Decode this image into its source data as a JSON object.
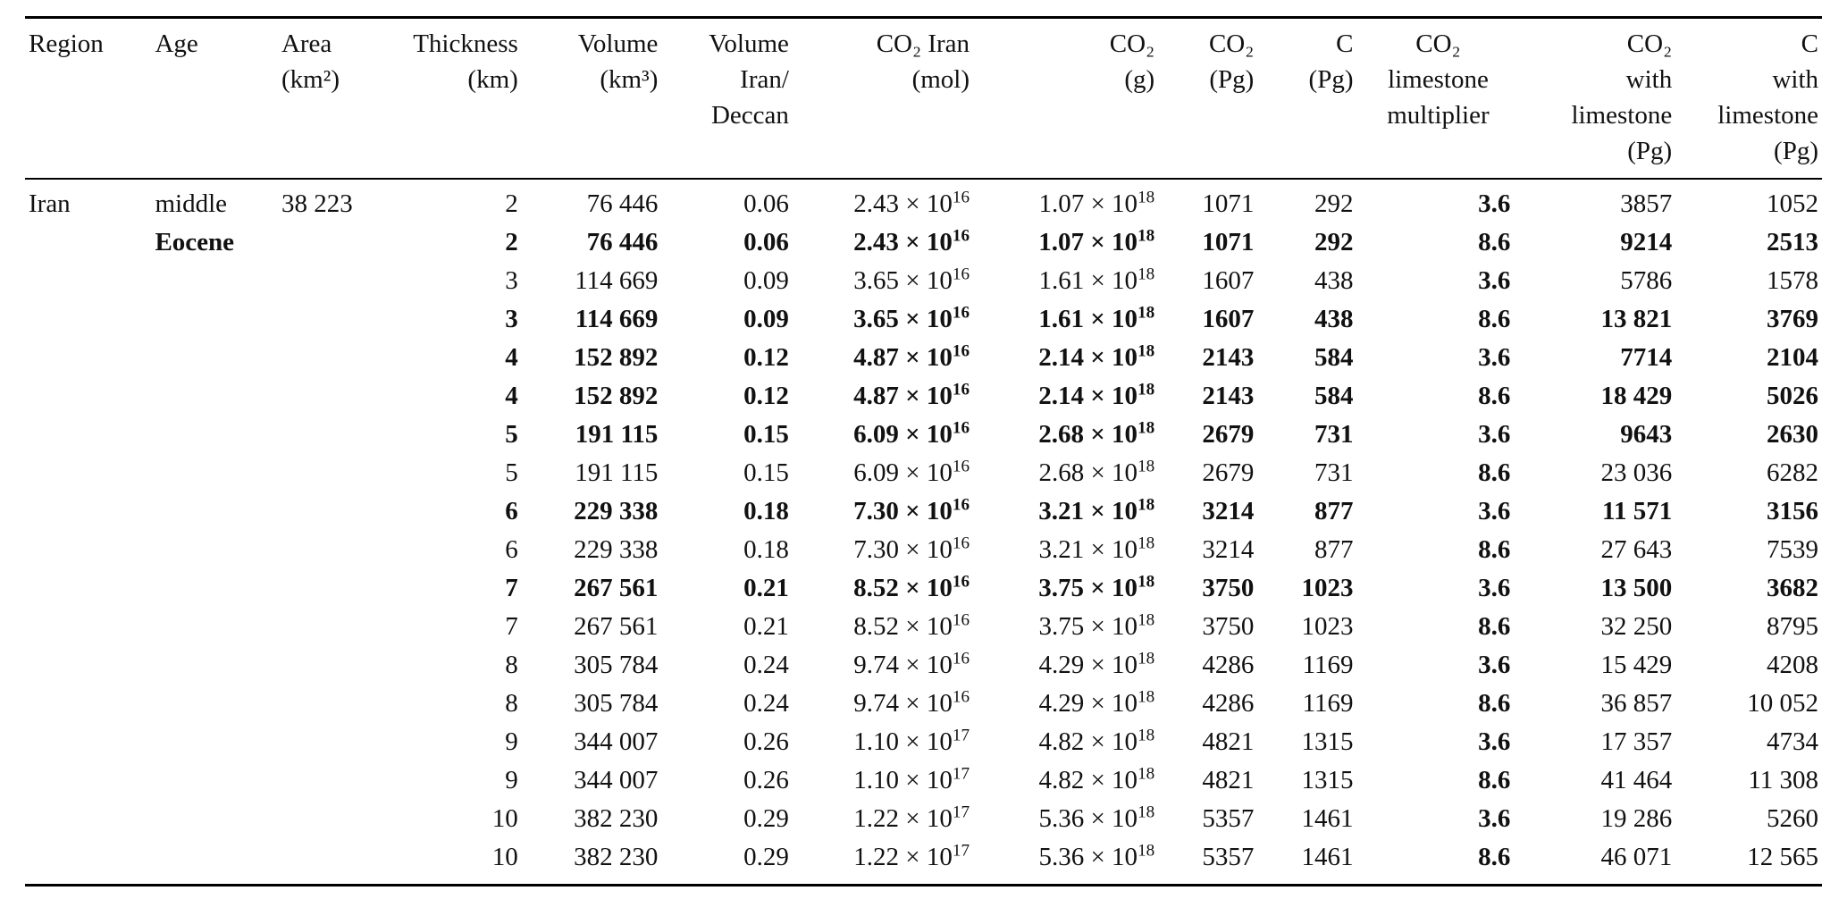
{
  "table": {
    "columns": [
      {
        "id": "region",
        "lines": [
          "Region"
        ]
      },
      {
        "id": "age",
        "lines": [
          "Age"
        ]
      },
      {
        "id": "area",
        "lines": [
          "Area",
          "(km²)"
        ]
      },
      {
        "id": "thickness",
        "lines": [
          "Thickness",
          "(km)"
        ]
      },
      {
        "id": "volume",
        "lines": [
          "Volume",
          "(km³)"
        ]
      },
      {
        "id": "vol_ratio",
        "lines": [
          "Volume",
          "Iran/",
          "Deccan"
        ]
      },
      {
        "id": "co2_mol",
        "lines": [
          "CO₂ Iran",
          "(mol)"
        ]
      },
      {
        "id": "co2_g",
        "lines": [
          "CO₂",
          "(g)"
        ]
      },
      {
        "id": "co2_pg",
        "lines": [
          "CO₂",
          "(Pg)"
        ]
      },
      {
        "id": "c_pg",
        "lines": [
          "C",
          "(Pg)"
        ]
      },
      {
        "id": "multiplier",
        "lines": [
          "CO₂",
          "limestone",
          "multiplier"
        ]
      },
      {
        "id": "co2_ls",
        "lines": [
          "CO₂",
          "with",
          "limestone",
          "(Pg)"
        ]
      },
      {
        "id": "c_ls",
        "lines": [
          "C",
          "with",
          "limestone",
          "(Pg)"
        ]
      }
    ],
    "rows": [
      {
        "region": "Iran",
        "age": "middle",
        "area": "38 223",
        "thickness": "2",
        "volume": "76 446",
        "vol_ratio": "0.06",
        "co2_mol": "2.43 × 10^16",
        "co2_g": "1.07 × 10^18",
        "co2_pg": "1071",
        "c_pg": "292",
        "multiplier": "3.6",
        "co2_ls": "3857",
        "c_ls": "1052",
        "bold": false
      },
      {
        "region": "",
        "age": "Eocene",
        "area": "",
        "thickness": "2",
        "volume": "76 446",
        "vol_ratio": "0.06",
        "co2_mol": "2.43 × 10^16",
        "co2_g": "1.07 × 10^18",
        "co2_pg": "1071",
        "c_pg": "292",
        "multiplier": "8.6",
        "co2_ls": "9214",
        "c_ls": "2513",
        "bold": true
      },
      {
        "region": "",
        "age": "",
        "area": "",
        "thickness": "3",
        "volume": "114 669",
        "vol_ratio": "0.09",
        "co2_mol": "3.65 × 10^16",
        "co2_g": "1.61 × 10^18",
        "co2_pg": "1607",
        "c_pg": "438",
        "multiplier": "3.6",
        "co2_ls": "5786",
        "c_ls": "1578",
        "bold": false
      },
      {
        "region": "",
        "age": "",
        "area": "",
        "thickness": "3",
        "volume": "114 669",
        "vol_ratio": "0.09",
        "co2_mol": "3.65 × 10^16",
        "co2_g": "1.61 × 10^18",
        "co2_pg": "1607",
        "c_pg": "438",
        "multiplier": "8.6",
        "co2_ls": "13 821",
        "c_ls": "3769",
        "bold": true
      },
      {
        "region": "",
        "age": "",
        "area": "",
        "thickness": "4",
        "volume": "152 892",
        "vol_ratio": "0.12",
        "co2_mol": "4.87 × 10^16",
        "co2_g": "2.14 × 10^18",
        "co2_pg": "2143",
        "c_pg": "584",
        "multiplier": "3.6",
        "co2_ls": "7714",
        "c_ls": "2104",
        "bold": true
      },
      {
        "region": "",
        "age": "",
        "area": "",
        "thickness": "4",
        "volume": "152 892",
        "vol_ratio": "0.12",
        "co2_mol": "4.87 × 10^16",
        "co2_g": "2.14 × 10^18",
        "co2_pg": "2143",
        "c_pg": "584",
        "multiplier": "8.6",
        "co2_ls": "18 429",
        "c_ls": "5026",
        "bold": true
      },
      {
        "region": "",
        "age": "",
        "area": "",
        "thickness": "5",
        "volume": "191 115",
        "vol_ratio": "0.15",
        "co2_mol": "6.09 × 10^16",
        "co2_g": "2.68 × 10^18",
        "co2_pg": "2679",
        "c_pg": "731",
        "multiplier": "3.6",
        "co2_ls": "9643",
        "c_ls": "2630",
        "bold": true
      },
      {
        "region": "",
        "age": "",
        "area": "",
        "thickness": "5",
        "volume": "191 115",
        "vol_ratio": "0.15",
        "co2_mol": "6.09 × 10^16",
        "co2_g": "2.68 × 10^18",
        "co2_pg": "2679",
        "c_pg": "731",
        "multiplier": "8.6",
        "co2_ls": "23 036",
        "c_ls": "6282",
        "bold": false
      },
      {
        "region": "",
        "age": "",
        "area": "",
        "thickness": "6",
        "volume": "229 338",
        "vol_ratio": "0.18",
        "co2_mol": "7.30 × 10^16",
        "co2_g": "3.21 × 10^18",
        "co2_pg": "3214",
        "c_pg": "877",
        "multiplier": "3.6",
        "co2_ls": "11 571",
        "c_ls": "3156",
        "bold": true
      },
      {
        "region": "",
        "age": "",
        "area": "",
        "thickness": "6",
        "volume": "229 338",
        "vol_ratio": "0.18",
        "co2_mol": "7.30 × 10^16",
        "co2_g": "3.21 × 10^18",
        "co2_pg": "3214",
        "c_pg": "877",
        "multiplier": "8.6",
        "co2_ls": "27 643",
        "c_ls": "7539",
        "bold": false
      },
      {
        "region": "",
        "age": "",
        "area": "",
        "thickness": "7",
        "volume": "267 561",
        "vol_ratio": "0.21",
        "co2_mol": "8.52 × 10^16",
        "co2_g": "3.75 × 10^18",
        "co2_pg": "3750",
        "c_pg": "1023",
        "multiplier": "3.6",
        "co2_ls": "13 500",
        "c_ls": "3682",
        "bold": true
      },
      {
        "region": "",
        "age": "",
        "area": "",
        "thickness": "7",
        "volume": "267 561",
        "vol_ratio": "0.21",
        "co2_mol": "8.52 × 10^16",
        "co2_g": "3.75 × 10^18",
        "co2_pg": "3750",
        "c_pg": "1023",
        "multiplier": "8.6",
        "co2_ls": "32 250",
        "c_ls": "8795",
        "bold": false
      },
      {
        "region": "",
        "age": "",
        "area": "",
        "thickness": "8",
        "volume": "305 784",
        "vol_ratio": "0.24",
        "co2_mol": "9.74 × 10^16",
        "co2_g": "4.29 × 10^18",
        "co2_pg": "4286",
        "c_pg": "1169",
        "multiplier": "3.6",
        "co2_ls": "15 429",
        "c_ls": "4208",
        "bold": false
      },
      {
        "region": "",
        "age": "",
        "area": "",
        "thickness": "8",
        "volume": "305 784",
        "vol_ratio": "0.24",
        "co2_mol": "9.74 × 10^16",
        "co2_g": "4.29 × 10^18",
        "co2_pg": "4286",
        "c_pg": "1169",
        "multiplier": "8.6",
        "co2_ls": "36 857",
        "c_ls": "10 052",
        "bold": false
      },
      {
        "region": "",
        "age": "",
        "area": "",
        "thickness": "9",
        "volume": "344 007",
        "vol_ratio": "0.26",
        "co2_mol": "1.10 × 10^17",
        "co2_g": "4.82 × 10^18",
        "co2_pg": "4821",
        "c_pg": "1315",
        "multiplier": "3.6",
        "co2_ls": "17 357",
        "c_ls": "4734",
        "bold": false
      },
      {
        "region": "",
        "age": "",
        "area": "",
        "thickness": "9",
        "volume": "344 007",
        "vol_ratio": "0.26",
        "co2_mol": "1.10 × 10^17",
        "co2_g": "4.82 × 10^18",
        "co2_pg": "4821",
        "c_pg": "1315",
        "multiplier": "8.6",
        "co2_ls": "41 464",
        "c_ls": "11 308",
        "bold": false
      },
      {
        "region": "",
        "age": "",
        "area": "",
        "thickness": "10",
        "volume": "382 230",
        "vol_ratio": "0.29",
        "co2_mol": "1.22 × 10^17",
        "co2_g": "5.36 × 10^18",
        "co2_pg": "5357",
        "c_pg": "1461",
        "multiplier": "3.6",
        "co2_ls": "19 286",
        "c_ls": "5260",
        "bold": false
      },
      {
        "region": "",
        "age": "",
        "area": "",
        "thickness": "10",
        "volume": "382 230",
        "vol_ratio": "0.29",
        "co2_mol": "1.22 × 10^17",
        "co2_g": "5.36 × 10^18",
        "co2_pg": "5357",
        "c_pg": "1461",
        "multiplier": "8.6",
        "co2_ls": "46 071",
        "c_ls": "12 565",
        "bold": false
      }
    ]
  }
}
